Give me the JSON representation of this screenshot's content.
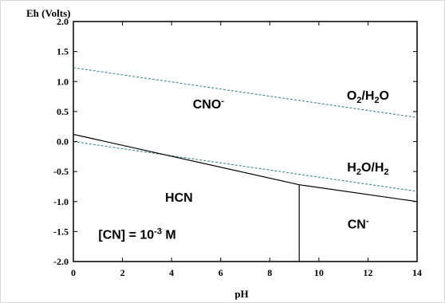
{
  "chart_data": {
    "type": "line",
    "title": "",
    "ylabel": "Eh (Volts)",
    "xlabel": "pH",
    "xlim": [
      0,
      14
    ],
    "ylim": [
      -2.0,
      2.0
    ],
    "x_ticks": [
      0,
      2,
      4,
      6,
      8,
      10,
      12,
      14
    ],
    "x_tick_labels": [
      "0",
      "2",
      "4",
      "6",
      "8",
      "10",
      "12",
      "14"
    ],
    "y_ticks": [
      2.0,
      1.5,
      1.0,
      0.5,
      0.0,
      -0.5,
      -1.0,
      -1.5,
      -2.0
    ],
    "y_tick_labels": [
      "2.0",
      "1.5",
      "1.0",
      "0.5",
      "0.0",
      "-0.5",
      "-1.0",
      "-1.5",
      "-2.0"
    ],
    "grid": false,
    "series": [
      {
        "name": "O2/H2O",
        "style": "dashed",
        "color": "#3a8a8c",
        "x": [
          0,
          14
        ],
        "y": [
          1.23,
          0.4
        ]
      },
      {
        "name": "H2O/H2",
        "style": "dashed",
        "color": "#3a8a8c",
        "x": [
          0,
          14
        ],
        "y": [
          0.0,
          -0.83
        ]
      },
      {
        "style": "solid",
        "color": "#000000",
        "x": [
          0,
          9.2,
          14
        ],
        "y": [
          0.12,
          -0.72,
          -1.0
        ]
      },
      {
        "style": "solid",
        "color": "#000000",
        "x": [
          9.2,
          9.2
        ],
        "y": [
          -0.72,
          -2.0
        ]
      }
    ],
    "annotations": [
      {
        "id": "cno",
        "main": "CNO",
        "sup": "-",
        "x": 5.5,
        "y": 0.55
      },
      {
        "id": "o2h2o",
        "segments": [
          [
            "O",
            ""
          ],
          [
            "2",
            "sub"
          ],
          [
            "/H",
            ""
          ],
          [
            "2",
            "sub"
          ],
          [
            "O",
            ""
          ]
        ],
        "x": 12.0,
        "y": 0.7
      },
      {
        "id": "h2oh2",
        "segments": [
          [
            "H",
            ""
          ],
          [
            "2",
            "sub"
          ],
          [
            "O/H",
            ""
          ],
          [
            "2",
            "sub"
          ]
        ],
        "x": 12.0,
        "y": -0.5
      },
      {
        "id": "hcn",
        "main": "HCN",
        "x": 4.3,
        "y": -1.0
      },
      {
        "id": "cn",
        "main": "CN",
        "sup": "-",
        "x": 11.6,
        "y": -1.45
      },
      {
        "id": "conc",
        "segments": [
          [
            "[CN] = 10",
            ""
          ],
          [
            "-3",
            "sup"
          ],
          [
            " M",
            ""
          ]
        ],
        "x": 2.6,
        "y": -1.62
      }
    ]
  },
  "colors": {
    "dashed_line": "#3a8a8c",
    "boundary_line": "#000000",
    "frame": "#d8d8d8"
  }
}
